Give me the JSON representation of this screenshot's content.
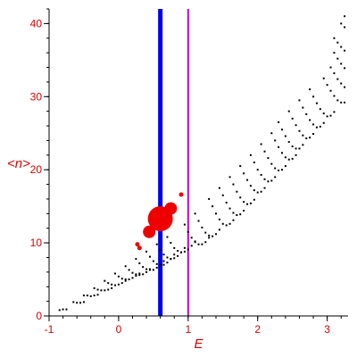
{
  "chart_data": {
    "type": "scatter",
    "xlabel": "E",
    "ylabel": "<n>",
    "xlim": [
      -1,
      3.3
    ],
    "ylim": [
      0,
      42
    ],
    "xticks": [
      -1,
      0,
      1,
      2,
      3
    ],
    "yticks": [
      0,
      10,
      20,
      30,
      40
    ],
    "axis_color": "#000000",
    "label_color": "#e00000",
    "vertical_lines": [
      {
        "x": 0.6,
        "color": "#0000ee"
      },
      {
        "x": 1.0,
        "color": "#cc00cc"
      }
    ],
    "highlight_points": [
      {
        "x": 0.6,
        "y": 13.3,
        "size": "large",
        "color": "#ee0000"
      },
      {
        "x": 0.75,
        "y": 14.7,
        "size": "medium",
        "color": "#ee0000"
      },
      {
        "x": 0.44,
        "y": 11.5,
        "size": "medium",
        "color": "#ee0000"
      },
      {
        "x": 0.9,
        "y": 16.6,
        "size": "small",
        "color": "#ee0000"
      },
      {
        "x": 0.27,
        "y": 9.8,
        "size": "small",
        "color": "#ee0000"
      },
      {
        "x": 0.3,
        "y": 9.3,
        "size": "small",
        "color": "#ee0000"
      }
    ],
    "series": [
      {
        "color": "#000000",
        "points": [
          [
            -0.85,
            0.8
          ],
          [
            -0.8,
            0.9
          ],
          [
            -0.75,
            0.9
          ],
          [
            -0.65,
            1.9
          ],
          [
            -0.6,
            1.8
          ],
          [
            -0.55,
            1.8
          ],
          [
            -0.5,
            1.9
          ],
          [
            -0.5,
            2.8
          ],
          [
            -0.45,
            2.8
          ],
          [
            -0.4,
            2.7
          ],
          [
            -0.35,
            2.8
          ],
          [
            -0.3,
            2.9
          ],
          [
            -0.35,
            3.8
          ],
          [
            -0.3,
            3.6
          ],
          [
            -0.25,
            3.5
          ],
          [
            -0.2,
            3.5
          ],
          [
            -0.15,
            3.6
          ],
          [
            -0.1,
            3.8
          ],
          [
            -0.2,
            4.8
          ],
          [
            -0.15,
            4.5
          ],
          [
            -0.1,
            4.3
          ],
          [
            -0.05,
            4.2
          ],
          [
            0.0,
            4.3
          ],
          [
            0.05,
            4.5
          ],
          [
            0.1,
            4.8
          ],
          [
            -0.05,
            5.8
          ],
          [
            0.0,
            5.4
          ],
          [
            0.05,
            5.1
          ],
          [
            0.1,
            5.0
          ],
          [
            0.15,
            5.0
          ],
          [
            0.2,
            5.2
          ],
          [
            0.25,
            5.5
          ],
          [
            0.3,
            5.8
          ],
          [
            0.1,
            6.8
          ],
          [
            0.15,
            6.3
          ],
          [
            0.2,
            5.9
          ],
          [
            0.25,
            5.7
          ],
          [
            0.3,
            5.6
          ],
          [
            0.35,
            5.7
          ],
          [
            0.4,
            6.0
          ],
          [
            0.45,
            6.4
          ],
          [
            0.25,
            7.8
          ],
          [
            0.3,
            7.2
          ],
          [
            0.35,
            6.7
          ],
          [
            0.4,
            6.4
          ],
          [
            0.45,
            6.3
          ],
          [
            0.5,
            6.3
          ],
          [
            0.55,
            6.6
          ],
          [
            0.6,
            7.0
          ],
          [
            0.65,
            7.5
          ],
          [
            0.4,
            8.8
          ],
          [
            0.45,
            8.1
          ],
          [
            0.5,
            7.5
          ],
          [
            0.55,
            7.1
          ],
          [
            0.6,
            6.9
          ],
          [
            0.65,
            7.0
          ],
          [
            0.7,
            7.3
          ],
          [
            0.75,
            7.8
          ],
          [
            0.8,
            8.4
          ],
          [
            0.55,
            9.8
          ],
          [
            0.6,
            9.0
          ],
          [
            0.65,
            8.4
          ],
          [
            0.7,
            8.0
          ],
          [
            0.75,
            7.8
          ],
          [
            0.8,
            7.9
          ],
          [
            0.85,
            8.2
          ],
          [
            0.9,
            8.7
          ],
          [
            0.95,
            9.3
          ],
          [
            0.7,
            10.8
          ],
          [
            0.75,
            10.0
          ],
          [
            0.8,
            9.3
          ],
          [
            0.85,
            8.9
          ],
          [
            0.9,
            8.7
          ],
          [
            0.95,
            8.8
          ],
          [
            1.0,
            9.1
          ],
          [
            1.05,
            9.6
          ],
          [
            1.1,
            10.2
          ],
          [
            0.95,
            12.5
          ],
          [
            1.0,
            11.5
          ],
          [
            1.05,
            10.7
          ],
          [
            1.1,
            10.1
          ],
          [
            1.15,
            9.8
          ],
          [
            1.2,
            9.8
          ],
          [
            1.25,
            10.1
          ],
          [
            1.3,
            10.7
          ],
          [
            1.1,
            14.0
          ],
          [
            1.15,
            13.0
          ],
          [
            1.2,
            12.1
          ],
          [
            1.25,
            11.4
          ],
          [
            1.3,
            11.0
          ],
          [
            1.35,
            10.9
          ],
          [
            1.4,
            11.2
          ],
          [
            1.45,
            11.8
          ],
          [
            1.3,
            16.0
          ],
          [
            1.35,
            15.0
          ],
          [
            1.4,
            14.0
          ],
          [
            1.45,
            13.2
          ],
          [
            1.5,
            12.6
          ],
          [
            1.55,
            12.4
          ],
          [
            1.6,
            12.6
          ],
          [
            1.65,
            13.1
          ],
          [
            1.45,
            17.5
          ],
          [
            1.5,
            16.5
          ],
          [
            1.55,
            15.5
          ],
          [
            1.6,
            14.7
          ],
          [
            1.65,
            14.1
          ],
          [
            1.7,
            13.8
          ],
          [
            1.75,
            13.9
          ],
          [
            1.8,
            14.4
          ],
          [
            1.6,
            19.0
          ],
          [
            1.65,
            18.0
          ],
          [
            1.7,
            17.0
          ],
          [
            1.75,
            16.2
          ],
          [
            1.8,
            15.6
          ],
          [
            1.85,
            15.3
          ],
          [
            1.9,
            15.4
          ],
          [
            1.95,
            15.9
          ],
          [
            1.75,
            20.5
          ],
          [
            1.8,
            19.5
          ],
          [
            1.85,
            18.6
          ],
          [
            1.9,
            17.8
          ],
          [
            1.95,
            17.2
          ],
          [
            2.0,
            16.9
          ],
          [
            2.05,
            17.0
          ],
          [
            2.1,
            17.5
          ],
          [
            1.9,
            22.0
          ],
          [
            1.95,
            21.0
          ],
          [
            2.0,
            20.0
          ],
          [
            2.05,
            19.3
          ],
          [
            2.1,
            18.7
          ],
          [
            2.15,
            18.4
          ],
          [
            2.2,
            18.5
          ],
          [
            2.25,
            19.0
          ],
          [
            2.05,
            23.5
          ],
          [
            2.1,
            22.5
          ],
          [
            2.15,
            21.6
          ],
          [
            2.2,
            20.8
          ],
          [
            2.25,
            20.2
          ],
          [
            2.3,
            19.9
          ],
          [
            2.35,
            20.0
          ],
          [
            2.4,
            20.5
          ],
          [
            2.2,
            25.0
          ],
          [
            2.25,
            24.0
          ],
          [
            2.3,
            23.1
          ],
          [
            2.35,
            22.3
          ],
          [
            2.4,
            21.7
          ],
          [
            2.45,
            21.4
          ],
          [
            2.5,
            21.5
          ],
          [
            2.55,
            22.0
          ],
          [
            2.3,
            26.5
          ],
          [
            2.35,
            25.5
          ],
          [
            2.4,
            24.6
          ],
          [
            2.45,
            23.8
          ],
          [
            2.5,
            23.2
          ],
          [
            2.55,
            22.9
          ],
          [
            2.6,
            22.9
          ],
          [
            2.65,
            23.4
          ],
          [
            2.45,
            28.0
          ],
          [
            2.5,
            27.0
          ],
          [
            2.55,
            26.1
          ],
          [
            2.6,
            25.3
          ],
          [
            2.65,
            24.7
          ],
          [
            2.7,
            24.3
          ],
          [
            2.75,
            24.4
          ],
          [
            2.8,
            24.9
          ],
          [
            2.6,
            29.5
          ],
          [
            2.65,
            28.5
          ],
          [
            2.7,
            27.6
          ],
          [
            2.75,
            26.8
          ],
          [
            2.8,
            26.2
          ],
          [
            2.85,
            25.8
          ],
          [
            2.9,
            25.9
          ],
          [
            2.95,
            26.4
          ],
          [
            2.75,
            31.0
          ],
          [
            2.8,
            30.0
          ],
          [
            2.85,
            29.1
          ],
          [
            2.9,
            28.3
          ],
          [
            2.95,
            27.7
          ],
          [
            3.0,
            27.3
          ],
          [
            3.05,
            27.4
          ],
          [
            3.1,
            27.9
          ],
          [
            2.95,
            32.5
          ],
          [
            3.0,
            31.6
          ],
          [
            3.05,
            30.8
          ],
          [
            3.1,
            30.1
          ],
          [
            3.15,
            29.5
          ],
          [
            3.2,
            29.2
          ],
          [
            3.25,
            29.2
          ],
          [
            3.05,
            34.0
          ],
          [
            3.1,
            33.2
          ],
          [
            3.15,
            32.4
          ],
          [
            3.2,
            31.8
          ],
          [
            3.25,
            31.3
          ],
          [
            3.1,
            36.0
          ],
          [
            3.15,
            35.2
          ],
          [
            3.2,
            34.5
          ],
          [
            3.25,
            33.9
          ],
          [
            3.1,
            38.0
          ],
          [
            3.15,
            37.4
          ],
          [
            3.2,
            36.8
          ],
          [
            3.25,
            36.3
          ],
          [
            3.2,
            40.0
          ],
          [
            3.25,
            39.5
          ],
          [
            3.25,
            41.0
          ]
        ]
      }
    ]
  }
}
